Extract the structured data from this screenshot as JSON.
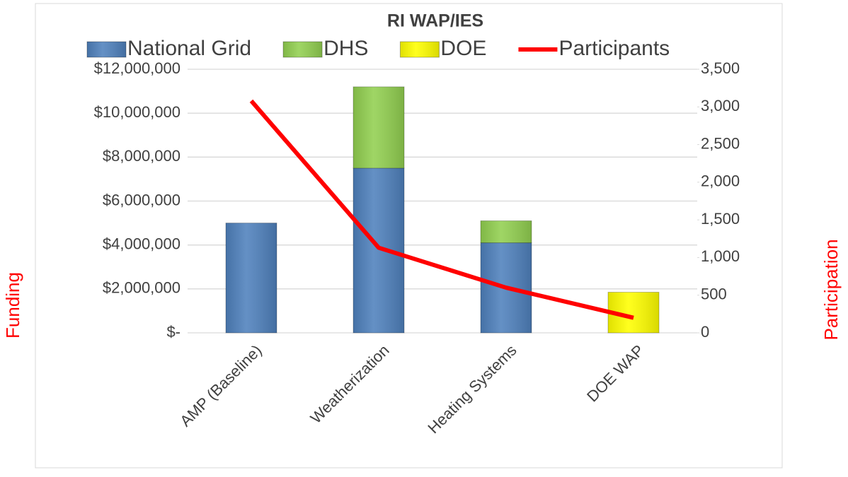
{
  "chart_data": {
    "type": "bar",
    "stacked": true,
    "title": "RI WAP/IES",
    "categories": [
      "AMP (Baseline)",
      "Weatherization",
      "Heating Systems",
      "DOE WAP"
    ],
    "series": [
      {
        "name": "National Grid",
        "color": "#4f81bd",
        "values": [
          5000000,
          7500000,
          4100000,
          null
        ]
      },
      {
        "name": "DHS",
        "color": "#92d050",
        "values": [
          null,
          3700000,
          1000000,
          null
        ]
      },
      {
        "name": "DOE",
        "color": "#ffff00",
        "values": [
          null,
          null,
          null,
          1850000
        ]
      },
      {
        "name": "Participants",
        "type": "line",
        "axis": "y2",
        "color": "#ff0000",
        "values": [
          3080,
          1130,
          600,
          200
        ]
      }
    ],
    "ylabel": "Funding",
    "y2label": "Participation",
    "ylim": [
      0,
      12000000
    ],
    "yticks": [
      {
        "value": 0,
        "label": "$-"
      },
      {
        "value": 2000000,
        "label": "$2,000,000"
      },
      {
        "value": 4000000,
        "label": "$4,000,000"
      },
      {
        "value": 6000000,
        "label": "$6,000,000"
      },
      {
        "value": 8000000,
        "label": "$8,000,000"
      },
      {
        "value": 10000000,
        "label": "$10,000,000"
      },
      {
        "value": 12000000,
        "label": "$12,000,000"
      }
    ],
    "y2lim": [
      0,
      3500
    ],
    "y2ticks": [
      0,
      500,
      {
        "value": 1000,
        "label": "1,000"
      },
      {
        "value": 1500,
        "label": "1,500"
      },
      {
        "value": 2000,
        "label": "2,000"
      },
      {
        "value": 2500,
        "label": "2,500"
      },
      {
        "value": 3000,
        "label": "3,000"
      },
      {
        "value": 3500,
        "label": "3,500"
      }
    ],
    "grid": true,
    "legend": "top"
  }
}
